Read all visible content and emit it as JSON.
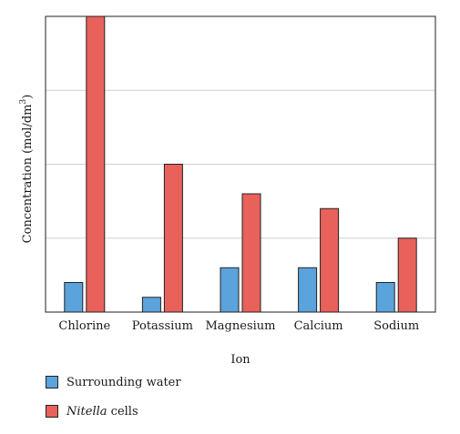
{
  "chart_data": {
    "type": "bar",
    "title": "",
    "xlabel": "Ion",
    "ylabel_main": "Concentration (mol/dm",
    "ylabel_sup": "3",
    "ylabel_close": ")",
    "categories": [
      "Chlorine",
      "Potassium",
      "Magnesium",
      "Calcium",
      "Sodium"
    ],
    "series": [
      {
        "name": "Surrounding water",
        "color": "#5ba3dc",
        "values": [
          1.0,
          0.5,
          1.5,
          1.5,
          1.0
        ]
      },
      {
        "name": "Nitella cells",
        "color": "#e8615b",
        "values": [
          10.0,
          5.0,
          4.0,
          3.5,
          2.5
        ]
      }
    ],
    "ylim": [
      0,
      10
    ],
    "grid": true,
    "legend_position": "bottom-left"
  },
  "legend": {
    "item1_label": "Surrounding water",
    "item2_italic": "Nitella",
    "item2_rest": " cells"
  }
}
